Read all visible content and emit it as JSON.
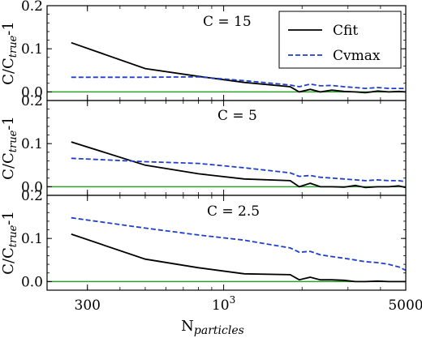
{
  "chart_data": {
    "type": "line",
    "xscale": "log",
    "xlim": [
      210,
      5000
    ],
    "x_major_ticks": [
      {
        "value": 300,
        "label": "300"
      },
      {
        "value": 1000,
        "label": "10",
        "sup": "3"
      },
      {
        "value": 5000,
        "label": "5000"
      }
    ],
    "xlabel": {
      "main": "N",
      "sub": "particles"
    },
    "ylabel": {
      "main": "C/C",
      "sub": "true",
      "tail": "-1"
    },
    "colors": {
      "cfit": "#000000",
      "cvmax": "#1f3fc8",
      "zero": "#2ca02c"
    },
    "legend": {
      "placement": "top-right of top panel",
      "entries": [
        {
          "name": "Cfit",
          "style": "solid",
          "color": "#000000"
        },
        {
          "name": "Cvmax",
          "style": "dashed",
          "color": "#1f3fc8"
        }
      ]
    },
    "panels": [
      {
        "title": "C = 15",
        "ylim": [
          -0.02,
          0.2
        ],
        "yticks": [
          {
            "value": 0.0,
            "label": "0.0"
          },
          {
            "value": 0.1,
            "label": "0.1"
          },
          {
            "value": 0.2,
            "label": "0.2"
          }
        ],
        "series": [
          {
            "name": "Cfit",
            "x": [
              260,
              500,
              800,
              1200,
              1800,
              1950,
              2150,
              2350,
              2600,
              2900,
              3200,
              3500,
              3900,
              4300,
              4700,
              5000
            ],
            "y": [
              0.114,
              0.054,
              0.036,
              0.022,
              0.012,
              0.0,
              0.006,
              0.0,
              0.004,
              0.001,
              0.0,
              -0.002,
              0.002,
              0.0,
              0.001,
              0.0
            ]
          },
          {
            "name": "Cvmax",
            "x": [
              260,
              500,
              800,
              1200,
              1800,
              1950,
              2150,
              2350,
              2600,
              2900,
              3200,
              3500,
              3900,
              4300,
              4700,
              5000
            ],
            "y": [
              0.034,
              0.034,
              0.035,
              0.026,
              0.016,
              0.012,
              0.018,
              0.014,
              0.015,
              0.012,
              0.01,
              0.008,
              0.01,
              0.008,
              0.008,
              0.008
            ]
          }
        ]
      },
      {
        "title": "C = 5",
        "ylim": [
          -0.02,
          0.2
        ],
        "yticks": [
          {
            "value": 0.0,
            "label": "0.0"
          },
          {
            "value": 0.1,
            "label": "0.1"
          },
          {
            "value": 0.2,
            "label": "0.2"
          }
        ],
        "series": [
          {
            "name": "Cfit",
            "x": [
              260,
              500,
              800,
              1200,
              1800,
              1950,
              2150,
              2350,
              2600,
              2900,
              3200,
              3500,
              3900,
              4300,
              4700,
              5000
            ],
            "y": [
              0.104,
              0.05,
              0.03,
              0.018,
              0.014,
              0.0,
              0.008,
              0.0,
              0.0,
              -0.001,
              0.003,
              -0.002,
              0.0,
              0.0,
              0.002,
              -0.002
            ]
          },
          {
            "name": "Cvmax",
            "x": [
              260,
              500,
              800,
              1200,
              1800,
              1950,
              2150,
              2350,
              2600,
              2900,
              3200,
              3500,
              3900,
              4300,
              4700,
              5000
            ],
            "y": [
              0.066,
              0.058,
              0.054,
              0.044,
              0.032,
              0.024,
              0.026,
              0.022,
              0.02,
              0.018,
              0.016,
              0.014,
              0.016,
              0.014,
              0.014,
              0.012
            ]
          }
        ]
      },
      {
        "title": "C = 2.5",
        "ylim": [
          -0.02,
          0.2
        ],
        "yticks": [
          {
            "value": 0.0,
            "label": "0.0"
          },
          {
            "value": 0.1,
            "label": "0.1"
          },
          {
            "value": 0.2,
            "label": "0.2"
          }
        ],
        "series": [
          {
            "name": "Cfit",
            "x": [
              260,
              500,
              800,
              1200,
              1800,
              1950,
              2150,
              2350,
              2600,
              2900,
              3200,
              3500,
              3900,
              4300,
              4700,
              5000
            ],
            "y": [
              0.11,
              0.052,
              0.032,
              0.018,
              0.016,
              0.004,
              0.01,
              0.004,
              0.004,
              0.003,
              0.0,
              0.0,
              0.001,
              0.0,
              0.0,
              0.0
            ]
          },
          {
            "name": "Cvmax",
            "x": [
              260,
              500,
              800,
              1200,
              1800,
              1950,
              2150,
              2350,
              2600,
              2900,
              3200,
              3500,
              3900,
              4300,
              4700,
              5000
            ],
            "y": [
              0.148,
              0.124,
              0.108,
              0.096,
              0.078,
              0.068,
              0.07,
              0.062,
              0.058,
              0.054,
              0.05,
              0.046,
              0.044,
              0.04,
              0.034,
              0.026
            ]
          }
        ]
      }
    ]
  }
}
